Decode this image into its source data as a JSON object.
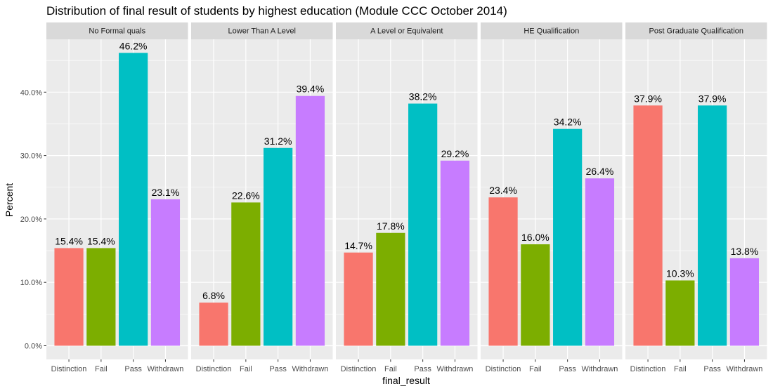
{
  "chart_data": {
    "type": "bar",
    "title": "Distribution of final result of students by highest education (Module CCC October 2014)",
    "xlabel": "final_result",
    "ylabel": "Percent",
    "categories": [
      "Distinction",
      "Fail",
      "Pass",
      "Withdrawn"
    ],
    "category_colors": [
      "#F8766D",
      "#7CAE00",
      "#00BFC4",
      "#C77CFF"
    ],
    "ylim": [
      0,
      0.48
    ],
    "yticks": [
      0,
      0.1,
      0.2,
      0.3,
      0.4
    ],
    "ytick_labels": [
      "0.0%",
      "10.0%",
      "20.0%",
      "30.0%",
      "40.0%"
    ],
    "grid": true,
    "panel_background": "#EBEBEB",
    "strip_background": "#D9D9D9",
    "panels": [
      {
        "name": "No Formal quals",
        "values": [
          0.154,
          0.154,
          0.462,
          0.231
        ],
        "labels": [
          "15.4%",
          "15.4%",
          "46.2%",
          "23.1%"
        ]
      },
      {
        "name": "Lower Than A Level",
        "values": [
          0.068,
          0.226,
          0.312,
          0.394
        ],
        "labels": [
          "6.8%",
          "22.6%",
          "31.2%",
          "39.4%"
        ]
      },
      {
        "name": "A Level or Equivalent",
        "values": [
          0.147,
          0.178,
          0.382,
          0.292
        ],
        "labels": [
          "14.7%",
          "17.8%",
          "38.2%",
          "29.2%"
        ]
      },
      {
        "name": "HE Qualification",
        "values": [
          0.234,
          0.16,
          0.342,
          0.264
        ],
        "labels": [
          "23.4%",
          "16.0%",
          "34.2%",
          "26.4%"
        ]
      },
      {
        "name": "Post Graduate Qualification",
        "values": [
          0.379,
          0.103,
          0.379,
          0.138
        ],
        "labels": [
          "37.9%",
          "10.3%",
          "37.9%",
          "13.8%"
        ]
      }
    ]
  }
}
